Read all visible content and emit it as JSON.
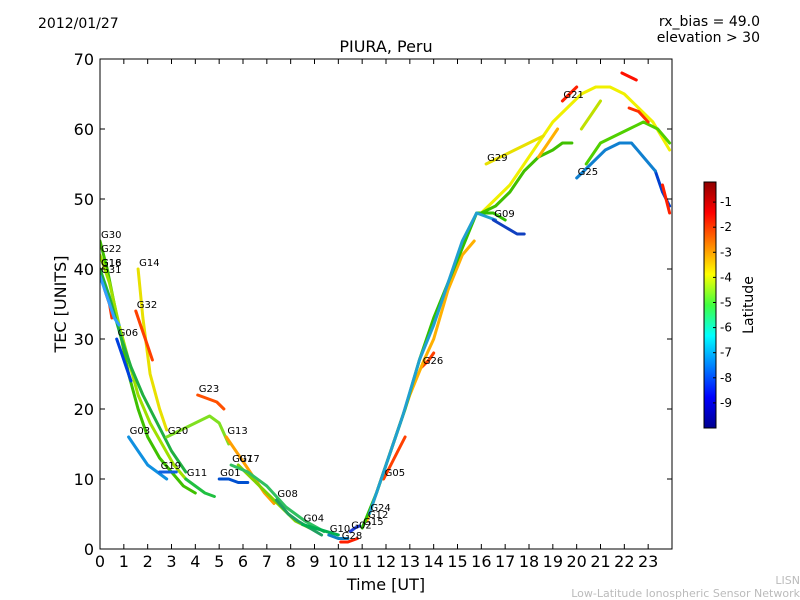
{
  "header": {
    "date": "2012/01/27",
    "title": "PIURA, Peru",
    "rx_bias": "rx_bias = 49.0",
    "elevation": "elevation > 30"
  },
  "footer": {
    "line1": "LISN",
    "line2": "Low-Latitude Ionospheric Sensor Network"
  },
  "chart_data": {
    "type": "scatter",
    "title": "PIURA, Peru",
    "xlabel": "Time [UT]",
    "ylabel": "TEC [UNITS]",
    "xlim": [
      0,
      24
    ],
    "ylim": [
      0,
      70
    ],
    "xticks": [
      "0",
      "1",
      "2",
      "3",
      "4",
      "5",
      "6",
      "7",
      "8",
      "9",
      "10",
      "11",
      "12",
      "13",
      "14",
      "15",
      "16",
      "17",
      "18",
      "19",
      "20",
      "21",
      "22",
      "23"
    ],
    "yticks": [
      "0",
      "10",
      "20",
      "30",
      "40",
      "50",
      "60",
      "70"
    ],
    "colorbar": {
      "label": "Latitude",
      "range": [
        -10,
        -0.2
      ],
      "ticks": [
        "-1",
        "-2",
        "-3",
        "-4",
        "-5",
        "-6",
        "-7",
        "-8",
        "-9"
      ]
    },
    "series": [
      {
        "name": "G30",
        "color": "#3fc000",
        "points": [
          [
            0,
            44
          ],
          [
            0.3,
            40
          ],
          [
            0.6,
            35
          ],
          [
            0.9,
            30
          ],
          [
            1.2,
            25
          ],
          [
            1.6,
            20
          ],
          [
            2.0,
            16
          ],
          [
            2.5,
            13
          ],
          [
            3.0,
            11
          ],
          [
            3.5,
            9
          ],
          [
            4.0,
            8
          ]
        ]
      },
      {
        "name": "G22",
        "color": "#a0e000",
        "points": [
          [
            0,
            42
          ],
          [
            0.4,
            38
          ],
          [
            0.8,
            32
          ],
          [
            1.2,
            27
          ],
          [
            1.6,
            22
          ],
          [
            2.1,
            18
          ],
          [
            2.6,
            15
          ],
          [
            3.1,
            12
          ],
          [
            3.6,
            10
          ]
        ]
      },
      {
        "name": "G16",
        "color": "#ff3000",
        "points": [
          [
            0,
            40
          ],
          [
            0.2,
            37
          ],
          [
            0.4,
            35
          ],
          [
            0.5,
            33
          ]
        ]
      },
      {
        "name": "G18",
        "color": "#20b040",
        "points": [
          [
            0,
            40
          ],
          [
            0.4,
            36
          ],
          [
            0.9,
            30
          ],
          [
            1.3,
            26
          ],
          [
            1.8,
            22
          ],
          [
            2.4,
            18
          ],
          [
            3.0,
            14
          ],
          [
            3.6,
            11
          ]
        ]
      },
      {
        "name": "G31",
        "color": "#30a0ff",
        "points": [
          [
            0,
            39
          ],
          [
            0.3,
            36
          ],
          [
            0.6,
            33
          ],
          [
            0.8,
            32
          ]
        ]
      },
      {
        "name": "G14",
        "color": "#e8e000",
        "points": [
          [
            1.6,
            40
          ],
          [
            1.8,
            33
          ],
          [
            2.1,
            25
          ],
          [
            2.5,
            20
          ],
          [
            2.8,
            17
          ]
        ]
      },
      {
        "name": "G32",
        "color": "#ff4000",
        "points": [
          [
            1.5,
            34
          ],
          [
            1.7,
            32
          ],
          [
            2.0,
            29
          ],
          [
            2.2,
            27
          ]
        ]
      },
      {
        "name": "G06",
        "color": "#0040e0",
        "points": [
          [
            0.7,
            30
          ],
          [
            0.9,
            28
          ],
          [
            1.1,
            26
          ],
          [
            1.3,
            24
          ]
        ]
      },
      {
        "name": "G03",
        "color": "#1090e0",
        "points": [
          [
            1.2,
            16
          ],
          [
            1.6,
            14
          ],
          [
            2.0,
            12
          ],
          [
            2.4,
            11
          ],
          [
            2.8,
            10
          ]
        ]
      },
      {
        "name": "G19",
        "color": "#1060e0",
        "points": [
          [
            2.5,
            11
          ],
          [
            2.8,
            11
          ],
          [
            3.2,
            11
          ]
        ]
      },
      {
        "name": "G23",
        "color": "#ff5000",
        "points": [
          [
            4.1,
            22
          ],
          [
            4.5,
            21.5
          ],
          [
            4.9,
            21
          ],
          [
            5.2,
            20
          ]
        ]
      },
      {
        "name": "G20",
        "color": "#80e020",
        "points": [
          [
            2.8,
            16
          ],
          [
            3.4,
            17
          ],
          [
            4.0,
            18
          ],
          [
            4.6,
            19
          ],
          [
            5.0,
            18
          ],
          [
            5.4,
            15
          ]
        ]
      },
      {
        "name": "G13",
        "color": "#ffa000",
        "points": [
          [
            5.3,
            16
          ],
          [
            5.7,
            14
          ],
          [
            6.1,
            12
          ],
          [
            6.5,
            10
          ],
          [
            6.9,
            8
          ],
          [
            7.3,
            6.5
          ]
        ]
      },
      {
        "name": "G11",
        "color": "#20c040",
        "points": [
          [
            3.6,
            10
          ],
          [
            4.0,
            9
          ],
          [
            4.4,
            8
          ],
          [
            4.8,
            7.5
          ]
        ]
      },
      {
        "name": "G01",
        "color": "#0050d0",
        "points": [
          [
            5.0,
            10
          ],
          [
            5.4,
            10
          ],
          [
            5.8,
            9.5
          ],
          [
            6.2,
            9.5
          ]
        ]
      },
      {
        "name": "G17",
        "color": "#80d000",
        "points": [
          [
            5.8,
            12
          ],
          [
            6.4,
            10
          ],
          [
            7.0,
            8
          ],
          [
            7.6,
            6
          ],
          [
            8.2,
            4
          ],
          [
            8.8,
            3
          ]
        ]
      },
      {
        "name": "G07",
        "color": "#30c060",
        "points": [
          [
            5.5,
            12
          ],
          [
            6.2,
            11
          ],
          [
            7.0,
            9
          ],
          [
            7.8,
            6
          ],
          [
            8.6,
            4
          ],
          [
            9.4,
            2.5
          ]
        ]
      },
      {
        "name": "G08",
        "color": "#20a060",
        "points": [
          [
            7.4,
            7
          ],
          [
            7.9,
            5
          ],
          [
            8.3,
            4
          ],
          [
            8.8,
            3
          ],
          [
            9.3,
            2
          ]
        ]
      },
      {
        "name": "G04",
        "color": "#00b050",
        "points": [
          [
            8.5,
            3.5
          ],
          [
            9.0,
            3
          ],
          [
            9.5,
            2.5
          ],
          [
            10.0,
            2
          ]
        ]
      },
      {
        "name": "G10",
        "color": "#1080c0",
        "points": [
          [
            9.6,
            2
          ],
          [
            10.0,
            1.5
          ],
          [
            10.4,
            1.5
          ]
        ]
      },
      {
        "name": "G28",
        "color": "#ff2000",
        "points": [
          [
            10.1,
            1
          ],
          [
            10.4,
            1
          ],
          [
            10.8,
            1.5
          ]
        ]
      },
      {
        "name": "G02",
        "color": "#2040e0",
        "points": [
          [
            10.5,
            2.5
          ],
          [
            10.7,
            3
          ],
          [
            10.9,
            3.3
          ]
        ]
      },
      {
        "name": "G05",
        "color": "#ff4000",
        "points": [
          [
            11.9,
            10
          ],
          [
            12.2,
            12
          ],
          [
            12.5,
            14
          ],
          [
            12.8,
            16
          ]
        ]
      },
      {
        "name": "G26",
        "color": "#ff4000",
        "points": [
          [
            13.5,
            26
          ],
          [
            13.8,
            27
          ],
          [
            14.0,
            28
          ]
        ]
      },
      {
        "name": "G12",
        "color": "#ffb000",
        "points": [
          [
            11.2,
            4
          ],
          [
            11.8,
            10
          ],
          [
            12.4,
            16
          ],
          [
            13.0,
            22
          ],
          [
            13.6,
            27
          ],
          [
            14.0,
            30
          ],
          [
            14.6,
            37
          ],
          [
            15.2,
            42
          ],
          [
            15.7,
            44
          ]
        ]
      },
      {
        "name": "G15",
        "color": "#30c000",
        "points": [
          [
            11.0,
            3
          ],
          [
            11.6,
            8
          ],
          [
            12.2,
            14
          ],
          [
            12.8,
            20
          ],
          [
            13.4,
            27
          ],
          [
            14.0,
            33
          ],
          [
            14.6,
            38
          ],
          [
            15.2,
            43
          ],
          [
            15.8,
            48
          ],
          [
            16.5,
            48
          ],
          [
            17.0,
            47
          ]
        ]
      },
      {
        "name": "G24",
        "color": "#20a0d0",
        "points": [
          [
            11.3,
            5
          ],
          [
            12.0,
            12
          ],
          [
            12.7,
            19
          ],
          [
            13.4,
            27
          ],
          [
            14.0,
            32
          ],
          [
            14.6,
            38
          ],
          [
            15.2,
            44
          ],
          [
            15.8,
            48
          ],
          [
            16.6,
            47
          ]
        ]
      },
      {
        "name": "G09",
        "color": "#1040c0",
        "points": [
          [
            16.5,
            47
          ],
          [
            17.0,
            46
          ],
          [
            17.5,
            45
          ],
          [
            17.8,
            45
          ]
        ]
      },
      {
        "name": "G29",
        "color": "#e8e000",
        "points": [
          [
            16.2,
            55
          ],
          [
            16.8,
            56
          ],
          [
            17.4,
            57
          ],
          [
            18.0,
            58
          ],
          [
            18.6,
            59
          ]
        ]
      },
      {
        "name": "G21",
        "color": "#ff2000",
        "points": [
          [
            19.4,
            64
          ],
          [
            19.7,
            65
          ],
          [
            20.0,
            66
          ]
        ]
      },
      {
        "name": "G25",
        "color": "#1080d0",
        "points": [
          [
            20.0,
            53
          ],
          [
            20.6,
            55
          ],
          [
            21.2,
            57
          ],
          [
            21.8,
            58
          ],
          [
            22.3,
            58
          ],
          [
            22.8,
            56
          ],
          [
            23.3,
            54
          ]
        ]
      }
    ],
    "extra_traces": [
      {
        "color": "#f0f000",
        "points": [
          [
            16.0,
            48
          ],
          [
            16.6,
            50
          ],
          [
            17.2,
            52
          ],
          [
            17.8,
            55
          ],
          [
            18.4,
            58
          ],
          [
            19.0,
            61
          ],
          [
            19.6,
            63
          ],
          [
            20.2,
            65
          ],
          [
            20.8,
            66
          ],
          [
            21.4,
            66
          ],
          [
            22.0,
            65
          ],
          [
            22.6,
            63
          ],
          [
            23.2,
            61
          ],
          [
            23.9,
            57
          ]
        ]
      },
      {
        "name_hidden": true,
        "color": "#40c000",
        "points": [
          [
            16.0,
            48
          ],
          [
            16.6,
            49
          ],
          [
            17.2,
            51
          ],
          [
            17.8,
            54
          ],
          [
            18.4,
            56
          ],
          [
            19.0,
            57
          ],
          [
            19.4,
            58
          ],
          [
            19.8,
            58
          ]
        ]
      },
      {
        "color": "#50d000",
        "points": [
          [
            20.4,
            55
          ],
          [
            21.0,
            58
          ],
          [
            21.6,
            59
          ],
          [
            22.2,
            60
          ],
          [
            22.8,
            61
          ],
          [
            23.4,
            60
          ],
          [
            23.9,
            58
          ]
        ]
      },
      {
        "color": "#ff1000",
        "points": [
          [
            21.9,
            68
          ],
          [
            22.2,
            67.5
          ],
          [
            22.5,
            67
          ]
        ]
      },
      {
        "color": "#ff3000",
        "points": [
          [
            22.2,
            63
          ],
          [
            22.6,
            62.5
          ],
          [
            23.0,
            61
          ]
        ]
      },
      {
        "color": "#c0e000",
        "points": [
          [
            20.2,
            60
          ],
          [
            20.6,
            62
          ],
          [
            21.0,
            64
          ]
        ]
      },
      {
        "color": "#0040d0",
        "points": [
          [
            23.3,
            54
          ],
          [
            23.6,
            51
          ],
          [
            23.9,
            49
          ]
        ]
      },
      {
        "color": "#ff2000",
        "points": [
          [
            23.6,
            52
          ],
          [
            23.9,
            48
          ]
        ]
      },
      {
        "color": "#ffb000",
        "points": [
          [
            18.4,
            56
          ],
          [
            18.8,
            58
          ],
          [
            19.2,
            60
          ]
        ]
      }
    ]
  }
}
